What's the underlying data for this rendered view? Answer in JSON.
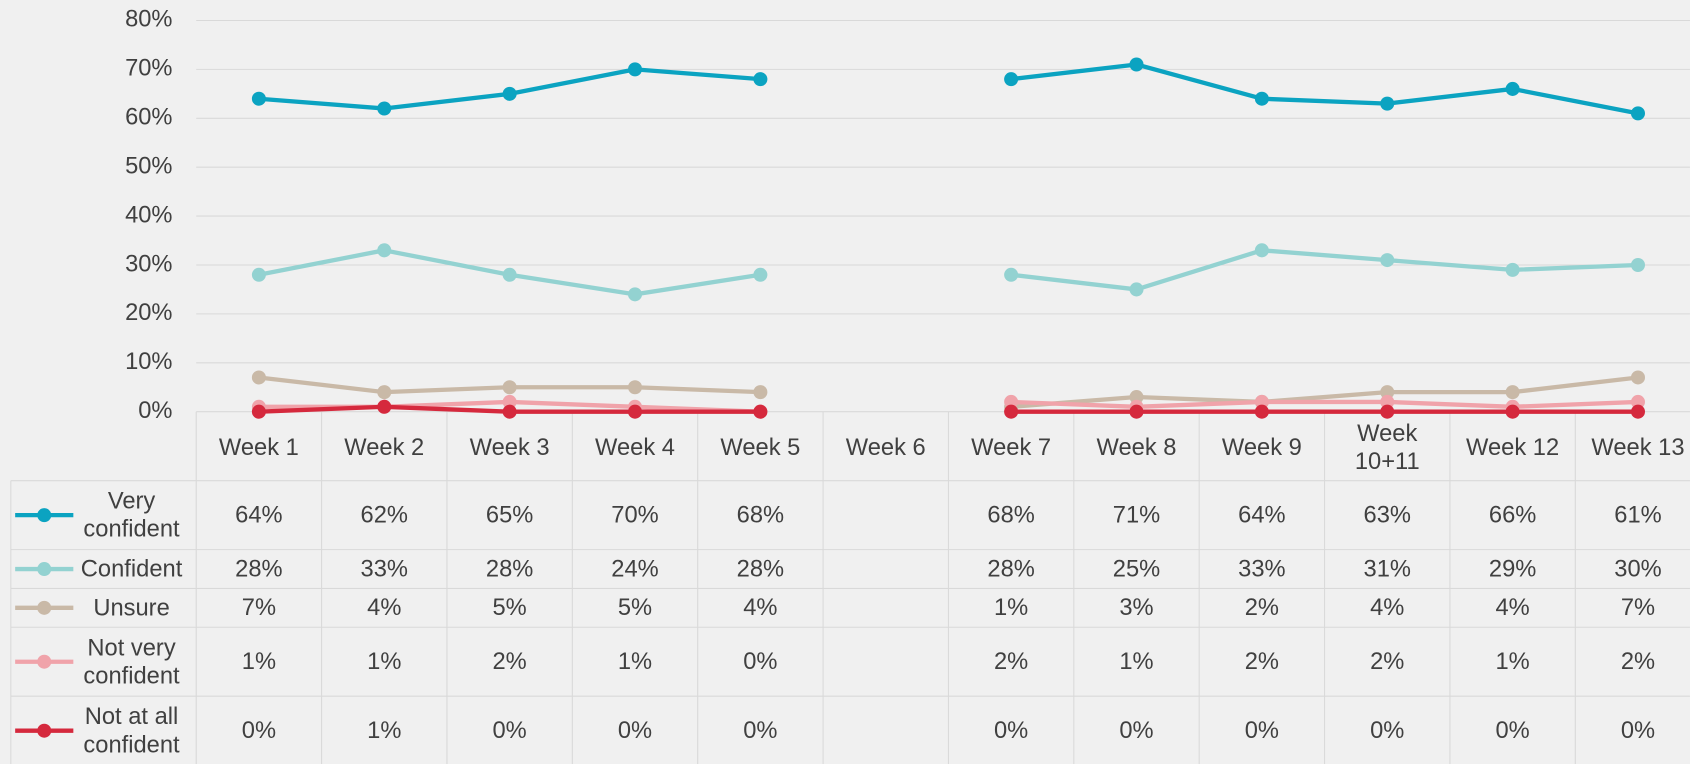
{
  "chart_data": {
    "type": "line",
    "categories": [
      "Week 1",
      "Week 2",
      "Week 3",
      "Week 4",
      "Week 5",
      "Week 6",
      "Week 7",
      "Week 8",
      "Week 9",
      "Week 10+11",
      "Week 12",
      "Week 13"
    ],
    "ylim": [
      0,
      80
    ],
    "yticks": [
      {
        "value": 0,
        "label": "0%"
      },
      {
        "value": 10,
        "label": "10%"
      },
      {
        "value": 20,
        "label": "20%"
      },
      {
        "value": 30,
        "label": "30%"
      },
      {
        "value": 40,
        "label": "40%"
      },
      {
        "value": 50,
        "label": "50%"
      },
      {
        "value": 60,
        "label": "60%"
      },
      {
        "value": 70,
        "label": "70%"
      },
      {
        "value": 80,
        "label": "80%"
      }
    ],
    "grid": true,
    "data_table": true,
    "series": [
      {
        "name": "Very confident",
        "color": "#0ba3c1",
        "values": [
          64,
          62,
          65,
          70,
          68,
          null,
          68,
          71,
          64,
          63,
          66,
          61
        ],
        "value_labels": [
          "64%",
          "62%",
          "65%",
          "70%",
          "68%",
          null,
          "68%",
          "71%",
          "64%",
          "63%",
          "66%",
          "61%"
        ]
      },
      {
        "name": "Confident",
        "color": "#93d2d1",
        "values": [
          28,
          33,
          28,
          24,
          28,
          null,
          28,
          25,
          33,
          31,
          29,
          30
        ],
        "value_labels": [
          "28%",
          "33%",
          "28%",
          "24%",
          "28%",
          null,
          "28%",
          "25%",
          "33%",
          "31%",
          "29%",
          "30%"
        ]
      },
      {
        "name": "Unsure",
        "color": "#c9b9a7",
        "values": [
          7,
          4,
          5,
          5,
          4,
          null,
          1,
          3,
          2,
          4,
          4,
          7
        ],
        "value_labels": [
          "7%",
          "4%",
          "5%",
          "5%",
          "4%",
          null,
          "1%",
          "3%",
          "2%",
          "4%",
          "4%",
          "7%"
        ]
      },
      {
        "name": "Not very confident",
        "color": "#f0a3aa",
        "values": [
          1,
          1,
          2,
          1,
          0,
          null,
          2,
          1,
          2,
          2,
          1,
          2
        ],
        "value_labels": [
          "1%",
          "1%",
          "2%",
          "1%",
          "0%",
          null,
          "2%",
          "1%",
          "2%",
          "2%",
          "1%",
          "2%"
        ]
      },
      {
        "name": "Not at all confident",
        "color": "#d5293d",
        "values": [
          0,
          1,
          0,
          0,
          0,
          null,
          0,
          0,
          0,
          0,
          0,
          0
        ],
        "value_labels": [
          "0%",
          "1%",
          "0%",
          "0%",
          "0%",
          null,
          "0%",
          "0%",
          "0%",
          "0%",
          "0%",
          "0%"
        ]
      }
    ]
  }
}
